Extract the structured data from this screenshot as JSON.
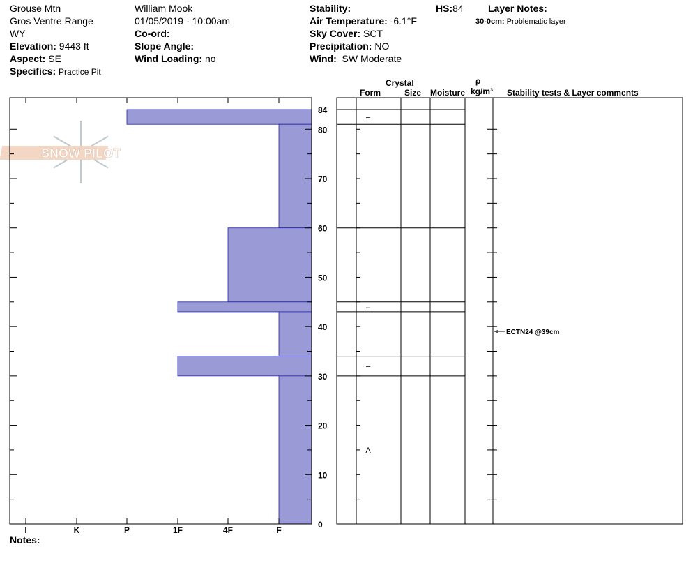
{
  "header": {
    "col1": {
      "location": "Grouse Mtn",
      "range": "Gros Ventre Range",
      "state": "WY",
      "elevation_label": "Elevation:",
      "elevation": "9443 ft",
      "aspect_label": "Aspect:",
      "aspect": "SE",
      "specifics_label": "Specifics:",
      "specifics": "Practice Pit"
    },
    "col2": {
      "observer": "William Mook",
      "datetime": "01/05/2019 - 10:00am",
      "coord_label": "Co-ord:",
      "slope_label": "Slope Angle:",
      "wind_loading_label": "Wind Loading:",
      "wind_loading": "no"
    },
    "col3": {
      "stability_label": "Stability:",
      "air_temp_label": "Air Temperature:",
      "air_temp": "-6.1°F",
      "sky_label": "Sky Cover:",
      "sky": "SCT",
      "precip_label": "Precipitation:",
      "precip": "NO",
      "wind_label": "Wind:",
      "wind": "SW Moderate"
    },
    "hs_label": "HS:",
    "hs": "84",
    "layer_notes_label": "Layer Notes:",
    "layer_note_range": "30-0cm:",
    "layer_note": "Problematic layer"
  },
  "table_headers": {
    "crystal": "Crystal",
    "form": "Form",
    "size": "Size",
    "moisture": "Moisture",
    "rho": "ρ",
    "density_unit": "kg/m³",
    "comments": "Stability tests & Layer comments"
  },
  "notes_label": "Notes:",
  "logo_text": "SNOW PILOT",
  "chart_data": {
    "type": "bar",
    "orientation": "horizontal",
    "ylabel": "",
    "ylim": [
      0,
      84
    ],
    "y_ticks": [
      "0",
      "10",
      "20",
      "30",
      "40",
      "50",
      "60",
      "70",
      "80",
      "84"
    ],
    "x_categories": [
      "I",
      "K",
      "P",
      "1F",
      "4F",
      "F"
    ],
    "bar_color": "#9a9ad6",
    "layers": [
      {
        "top": 84,
        "bottom": 81,
        "hardness": "P",
        "form": "–"
      },
      {
        "top": 81,
        "bottom": 60,
        "hardness": "F",
        "form": ""
      },
      {
        "top": 60,
        "bottom": 45,
        "hardness": "4F",
        "form": ""
      },
      {
        "top": 45,
        "bottom": 43,
        "hardness": "1F",
        "form": "–"
      },
      {
        "top": 43,
        "bottom": 34,
        "hardness": "F",
        "form": ""
      },
      {
        "top": 34,
        "bottom": 30,
        "hardness": "1F",
        "form": "–"
      },
      {
        "top": 30,
        "bottom": 0,
        "hardness": "F",
        "form": ""
      }
    ],
    "form_symbols": [
      {
        "depth": 15,
        "symbol": "Λ"
      }
    ],
    "stability_tests": [
      {
        "depth": 39,
        "label": "ECTN24 @39cm"
      }
    ]
  }
}
